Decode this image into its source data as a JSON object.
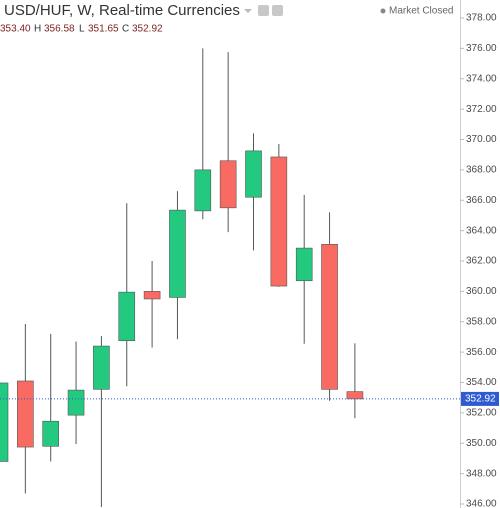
{
  "chart_data": {
    "type": "candlestick",
    "title": "USD/HUF, W, Real-time Currencies",
    "status": "Market Closed",
    "legend_keys": [
      "H",
      "L",
      "C"
    ],
    "last_labels": {
      "open": "353.40",
      "high": "356.58",
      "low": "351.65",
      "close": "352.92"
    },
    "categories": [
      null,
      null,
      null,
      null,
      null,
      null,
      null,
      null,
      null,
      null,
      null,
      null,
      null,
      null,
      null
    ],
    "open": [
      348.8,
      354.1,
      349.8,
      351.85,
      353.55,
      356.75,
      360.0,
      359.6,
      365.3,
      368.6,
      366.2,
      368.85,
      360.7,
      363.1,
      353.4
    ],
    "high": [
      354.0,
      357.85,
      357.2,
      356.7,
      357.05,
      365.8,
      362.0,
      366.6,
      376.0,
      375.75,
      370.4,
      369.7,
      366.35,
      365.2,
      356.58
    ],
    "low": [
      348.8,
      346.7,
      348.8,
      349.95,
      345.8,
      353.75,
      356.3,
      356.85,
      364.75,
      363.9,
      362.7,
      360.3,
      356.55,
      352.8,
      351.65
    ],
    "close": [
      353.97,
      349.75,
      351.45,
      353.5,
      356.4,
      359.95,
      359.5,
      365.35,
      368.0,
      365.5,
      369.25,
      360.35,
      362.85,
      353.55,
      352.92
    ],
    "up_color": "#22c97f",
    "down_color": "#f96b62",
    "wick_color": "#4f5a5a",
    "price_line_color": "#2f5bd0",
    "ylim": [
      346,
      378
    ],
    "yticks": [
      {
        "value": 346,
        "label": "346.00"
      },
      {
        "value": 348,
        "label": "348.00"
      },
      {
        "value": 350,
        "label": "350.00"
      },
      {
        "value": 352,
        "label": "352.00"
      },
      {
        "value": 354,
        "label": "354.00"
      },
      {
        "value": 356,
        "label": "356.00"
      },
      {
        "value": 358,
        "label": "358.00"
      },
      {
        "value": 360,
        "label": "360.00"
      },
      {
        "value": 362,
        "label": "362.00"
      },
      {
        "value": 364,
        "label": "364.00"
      },
      {
        "value": 366,
        "label": "366.00"
      },
      {
        "value": 368,
        "label": "368.00"
      },
      {
        "value": 370,
        "label": "370.00"
      },
      {
        "value": 372,
        "label": "372.00"
      },
      {
        "value": 374,
        "label": "374.00"
      },
      {
        "value": 376,
        "label": "376.00"
      },
      {
        "value": 378,
        "label": "378.00"
      }
    ]
  }
}
